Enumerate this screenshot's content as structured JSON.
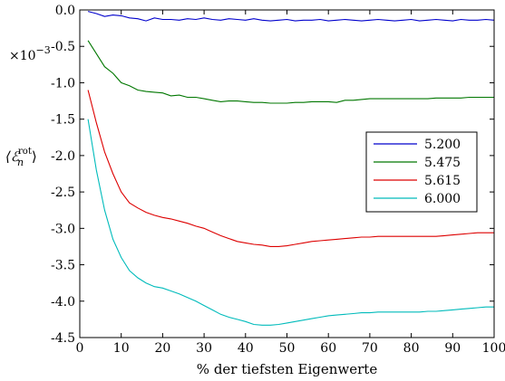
{
  "chart_data": {
    "type": "line",
    "title": "",
    "xlabel": "% der tiefsten Eigenwerte",
    "ylabel_main": "⟨ℰ",
    "ylabel_sub": "n",
    "ylabel_sup": "rot",
    "ylabel_close": "⟩",
    "offset_prefix": "×10",
    "offset_exp": "−3",
    "xlim": [
      0,
      100
    ],
    "ylim": [
      -4.5,
      0.0
    ],
    "xticks": [
      0,
      10,
      20,
      30,
      40,
      50,
      60,
      70,
      80,
      90,
      100
    ],
    "xtick_labels": [
      "0",
      "10",
      "20",
      "30",
      "40",
      "50",
      "60",
      "70",
      "80",
      "90",
      "100"
    ],
    "yticks": [
      0.0,
      -0.5,
      -1.0,
      -1.5,
      -2.0,
      -2.5,
      -3.0,
      -3.5,
      -4.0,
      -4.5
    ],
    "ytick_labels": [
      "0.0",
      "-0.5",
      "-1.0",
      "-1.5",
      "-2.0",
      "-2.5",
      "-3.0",
      "-3.5",
      "-4.0",
      "-4.5"
    ],
    "grid": false,
    "legend_position": "center-right",
    "series": [
      {
        "name": "5.200",
        "color": "#0000cc",
        "x": [
          2,
          4,
          6,
          8,
          10,
          12,
          14,
          16,
          18,
          20,
          22,
          24,
          26,
          28,
          30,
          32,
          34,
          36,
          38,
          40,
          42,
          44,
          46,
          48,
          50,
          52,
          54,
          56,
          58,
          60,
          62,
          64,
          66,
          68,
          70,
          72,
          74,
          76,
          78,
          80,
          82,
          84,
          86,
          88,
          90,
          92,
          94,
          96,
          98,
          100
        ],
        "y": [
          -0.02,
          -0.05,
          -0.09,
          -0.07,
          -0.08,
          -0.11,
          -0.12,
          -0.15,
          -0.11,
          -0.13,
          -0.13,
          -0.14,
          -0.12,
          -0.13,
          -0.11,
          -0.13,
          -0.14,
          -0.12,
          -0.13,
          -0.14,
          -0.12,
          -0.14,
          -0.15,
          -0.14,
          -0.13,
          -0.15,
          -0.14,
          -0.14,
          -0.13,
          -0.15,
          -0.14,
          -0.13,
          -0.14,
          -0.15,
          -0.14,
          -0.13,
          -0.14,
          -0.15,
          -0.14,
          -0.13,
          -0.15,
          -0.14,
          -0.13,
          -0.14,
          -0.15,
          -0.13,
          -0.14,
          -0.14,
          -0.13,
          -0.14
        ]
      },
      {
        "name": "5.475",
        "color": "#007700",
        "x": [
          2,
          4,
          6,
          8,
          10,
          12,
          14,
          16,
          18,
          20,
          22,
          24,
          26,
          28,
          30,
          32,
          34,
          36,
          38,
          40,
          42,
          44,
          46,
          48,
          50,
          52,
          54,
          56,
          58,
          60,
          62,
          64,
          66,
          68,
          70,
          72,
          74,
          76,
          78,
          80,
          82,
          84,
          86,
          88,
          90,
          92,
          94,
          96,
          98,
          100
        ],
        "y": [
          -0.42,
          -0.6,
          -0.78,
          -0.87,
          -1.0,
          -1.04,
          -1.1,
          -1.12,
          -1.13,
          -1.14,
          -1.18,
          -1.17,
          -1.2,
          -1.2,
          -1.22,
          -1.24,
          -1.26,
          -1.25,
          -1.25,
          -1.26,
          -1.27,
          -1.27,
          -1.28,
          -1.28,
          -1.28,
          -1.27,
          -1.27,
          -1.26,
          -1.26,
          -1.26,
          -1.27,
          -1.24,
          -1.24,
          -1.23,
          -1.22,
          -1.22,
          -1.22,
          -1.22,
          -1.22,
          -1.22,
          -1.22,
          -1.22,
          -1.21,
          -1.21,
          -1.21,
          -1.21,
          -1.2,
          -1.2,
          -1.2,
          -1.2
        ]
      },
      {
        "name": "5.615",
        "color": "#dd0000",
        "x": [
          2,
          4,
          6,
          8,
          10,
          12,
          14,
          16,
          18,
          20,
          22,
          24,
          26,
          28,
          30,
          32,
          34,
          36,
          38,
          40,
          42,
          44,
          46,
          48,
          50,
          52,
          54,
          56,
          58,
          60,
          62,
          64,
          66,
          68,
          70,
          72,
          74,
          76,
          78,
          80,
          82,
          84,
          86,
          88,
          90,
          92,
          94,
          96,
          98,
          100
        ],
        "y": [
          -1.1,
          -1.55,
          -1.95,
          -2.25,
          -2.5,
          -2.65,
          -2.72,
          -2.78,
          -2.82,
          -2.85,
          -2.87,
          -2.9,
          -2.93,
          -2.97,
          -3.0,
          -3.05,
          -3.1,
          -3.14,
          -3.18,
          -3.2,
          -3.22,
          -3.23,
          -3.25,
          -3.25,
          -3.24,
          -3.22,
          -3.2,
          -3.18,
          -3.17,
          -3.16,
          -3.15,
          -3.14,
          -3.13,
          -3.12,
          -3.12,
          -3.11,
          -3.11,
          -3.11,
          -3.11,
          -3.11,
          -3.11,
          -3.11,
          -3.11,
          -3.1,
          -3.09,
          -3.08,
          -3.07,
          -3.06,
          -3.06,
          -3.06
        ]
      },
      {
        "name": "6.000",
        "color": "#00bbbb",
        "x": [
          2,
          4,
          6,
          8,
          10,
          12,
          14,
          16,
          18,
          20,
          22,
          24,
          26,
          28,
          30,
          32,
          34,
          36,
          38,
          40,
          42,
          44,
          46,
          48,
          50,
          52,
          54,
          56,
          58,
          60,
          62,
          64,
          66,
          68,
          70,
          72,
          74,
          76,
          78,
          80,
          82,
          84,
          86,
          88,
          90,
          92,
          94,
          96,
          98,
          100
        ],
        "y": [
          -1.5,
          -2.2,
          -2.75,
          -3.15,
          -3.4,
          -3.58,
          -3.68,
          -3.75,
          -3.8,
          -3.82,
          -3.86,
          -3.9,
          -3.95,
          -4.0,
          -4.06,
          -4.12,
          -4.18,
          -4.22,
          -4.25,
          -4.28,
          -4.32,
          -4.33,
          -4.33,
          -4.32,
          -4.3,
          -4.28,
          -4.26,
          -4.24,
          -4.22,
          -4.2,
          -4.19,
          -4.18,
          -4.17,
          -4.16,
          -4.16,
          -4.15,
          -4.15,
          -4.15,
          -4.15,
          -4.15,
          -4.15,
          -4.14,
          -4.14,
          -4.13,
          -4.12,
          -4.11,
          -4.1,
          -4.09,
          -4.08,
          -4.08
        ]
      }
    ]
  }
}
